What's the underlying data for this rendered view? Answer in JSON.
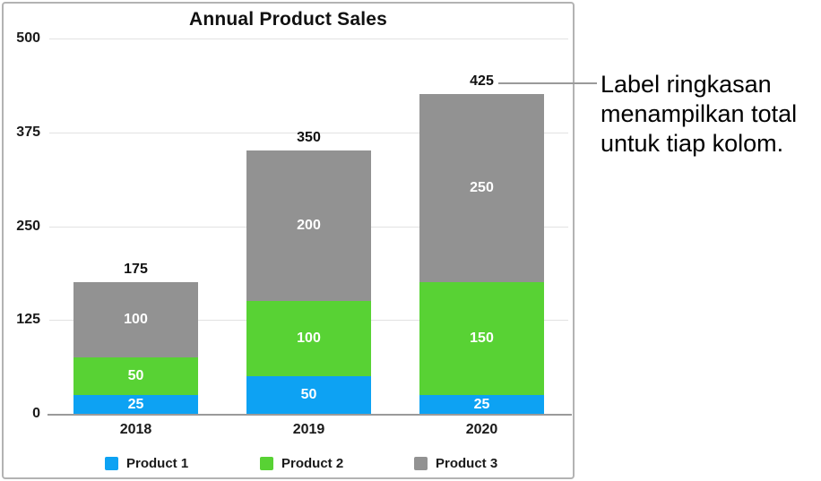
{
  "chart_data": {
    "type": "bar",
    "stacked": true,
    "title": "Annual Product Sales",
    "categories": [
      "2018",
      "2019",
      "2020"
    ],
    "series": [
      {
        "name": "Product 1",
        "color": "#0da2f3",
        "values": [
          25,
          50,
          25
        ]
      },
      {
        "name": "Product 2",
        "color": "#58d234",
        "values": [
          50,
          100,
          150
        ]
      },
      {
        "name": "Product 3",
        "color": "#929292",
        "values": [
          100,
          200,
          250
        ]
      }
    ],
    "totals": [
      175,
      350,
      425
    ],
    "xlabel": "",
    "ylabel": "",
    "ylim": [
      0,
      500
    ],
    "yticks": [
      0,
      125,
      250,
      375,
      500
    ],
    "grid": "horizontal",
    "legend_position": "bottom",
    "value_labels": "inside-segments-white",
    "total_labels": "above-columns"
  },
  "annotation": {
    "text": "Label ringkasan\nmenampilkan total\nuntuk tiap kolom.",
    "callout_target_total": "425"
  },
  "colors": {
    "grid": "#e2e2e2",
    "axis": "#9a9a9a",
    "callout": "#9a9a9a",
    "figure_border": "#b3b3b3",
    "text": "#111111",
    "segment_text": "#ffffff"
  }
}
